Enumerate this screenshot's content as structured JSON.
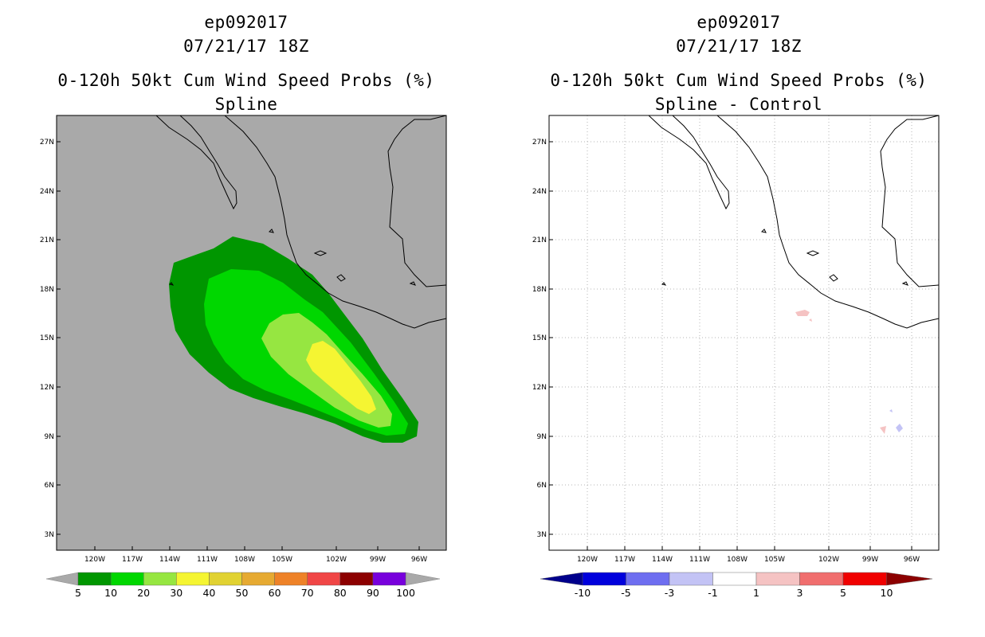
{
  "panels": [
    {
      "storm_id": "ep092017",
      "datetime": "07/21/17 18Z",
      "product": "0-120h 50kt Cum Wind Speed Probs (%)",
      "method": "Spline",
      "background": "#a9a9a9",
      "colorbar_labels": [
        "5",
        "10",
        "20",
        "30",
        "40",
        "50",
        "60",
        "70",
        "80",
        "90",
        "100"
      ],
      "colorbar_colors": [
        "#009600",
        "#00d700",
        "#96e641",
        "#f5f532",
        "#e1d232",
        "#e6aa32",
        "#ee8228",
        "#f04646",
        "#8c0000",
        "#7800dc"
      ]
    },
    {
      "storm_id": "ep092017",
      "datetime": "07/21/17 18Z",
      "product": "0-120h 50kt Cum Wind Speed Probs (%)",
      "method": "Spline - Control",
      "background": "#ffffff",
      "colorbar_labels": [
        "-10",
        "-5",
        "-3",
        "-1",
        "1",
        "3",
        "5",
        "10"
      ],
      "colorbar_colors": [
        "#0000dc",
        "#6e6ef0",
        "#c3c3f5",
        "#ffffff",
        "#f5c3c3",
        "#f06e6e",
        "#f00000"
      ],
      "colorbar_end_colors": [
        "#00008c",
        "#8c0000"
      ]
    }
  ],
  "map": {
    "lon_labels": [
      "120W",
      "117W",
      "114W",
      "111W",
      "108W",
      "105W",
      "102W",
      "99W",
      "96W"
    ],
    "lat_labels": [
      "27N",
      "24N",
      "21N",
      "18N",
      "15N",
      "12N",
      "9N",
      "6N",
      "3N"
    ],
    "lon_range": [
      -123,
      -93
    ],
    "lat_range": [
      1.5,
      28.5
    ],
    "coastline_color": "#000000",
    "grid_color": "#b4b4b4"
  }
}
